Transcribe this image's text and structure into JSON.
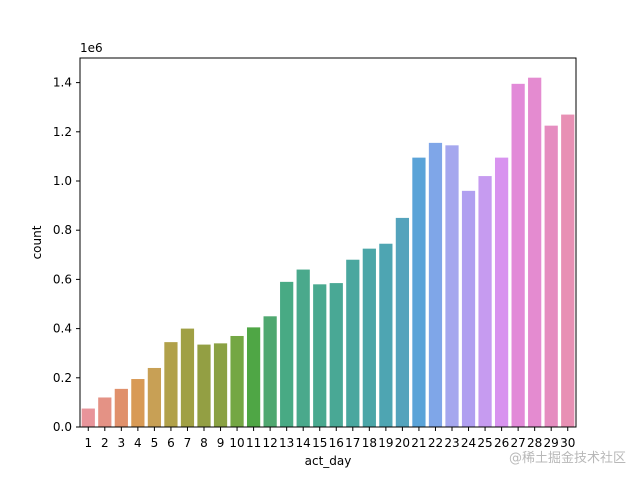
{
  "chart_data": {
    "type": "bar",
    "xlabel": "act_day",
    "ylabel": "count",
    "y_offset_label": "1e6",
    "ylim": [
      0,
      1.5
    ],
    "y_ticks": [
      "0.0",
      "0.2",
      "0.4",
      "0.6",
      "0.8",
      "1.0",
      "1.2",
      "1.4"
    ],
    "categories": [
      "1",
      "2",
      "3",
      "4",
      "5",
      "6",
      "7",
      "8",
      "9",
      "10",
      "11",
      "12",
      "13",
      "14",
      "15",
      "16",
      "17",
      "18",
      "19",
      "20",
      "21",
      "22",
      "23",
      "24",
      "25",
      "26",
      "27",
      "28",
      "29",
      "30"
    ],
    "values": [
      0.075,
      0.12,
      0.155,
      0.195,
      0.24,
      0.345,
      0.4,
      0.335,
      0.34,
      0.37,
      0.405,
      0.45,
      0.59,
      0.64,
      0.58,
      0.585,
      0.68,
      0.725,
      0.745,
      0.85,
      1.095,
      1.155,
      1.145,
      0.96,
      1.02,
      1.095,
      1.395,
      1.42,
      1.225,
      1.27
    ],
    "colors": [
      "#e8949a",
      "#e49285",
      "#e0906b",
      "#d89a55",
      "#c8a055",
      "#b1a14a",
      "#a0a044",
      "#939f43",
      "#8aa143",
      "#74a744",
      "#4fa645",
      "#4fa870",
      "#48aa84",
      "#4aa98c",
      "#49a98f",
      "#49a895",
      "#4aa79f",
      "#4ba6a8",
      "#4ea5b2",
      "#54a3bc",
      "#5aa3d8",
      "#7fa6e8",
      "#a5a7ee",
      "#b09ff0",
      "#c69bf0",
      "#d893ef",
      "#e28ad8",
      "#e48bd0",
      "#e58dc0",
      "#e890b4"
    ],
    "grid": false,
    "legend": "none"
  },
  "watermark": "@稀土掘金技术社区"
}
